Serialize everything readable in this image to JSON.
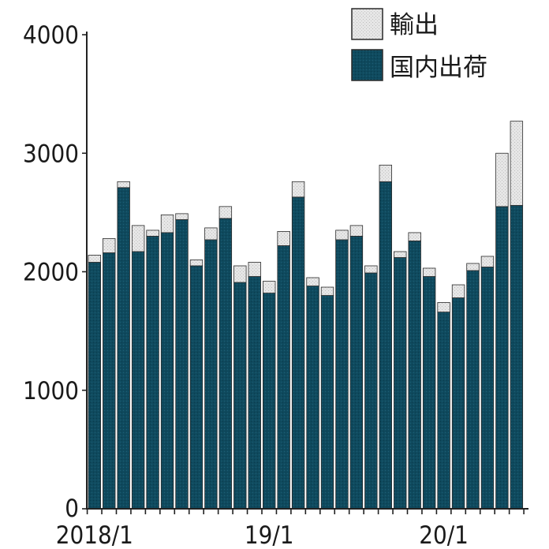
{
  "chart_data": {
    "type": "bar",
    "stacked": true,
    "title": "",
    "xlabel": "",
    "ylabel": "",
    "ylim": [
      0,
      4000
    ],
    "yticks": [
      0,
      1000,
      2000,
      3000,
      4000
    ],
    "grid": false,
    "legend_position": "top-right",
    "x_tick_labels": [
      {
        "index": 0,
        "label": "2018/1"
      },
      {
        "index": 12,
        "label": "19/1"
      },
      {
        "index": 24,
        "label": "20/1"
      }
    ],
    "series": [
      {
        "name": "国内出荷",
        "color": "#0f4a5e",
        "values": [
          2080,
          2160,
          2710,
          2170,
          2300,
          2330,
          2440,
          2050,
          2270,
          2450,
          1910,
          1960,
          1820,
          2220,
          2630,
          1880,
          1800,
          2270,
          2300,
          1990,
          2760,
          2120,
          2260,
          1960,
          1660,
          1780,
          2010,
          2040,
          2550,
          2560
        ]
      },
      {
        "name": "輸出",
        "color": "#dcdcdc",
        "values": [
          60,
          120,
          50,
          220,
          50,
          150,
          50,
          50,
          100,
          100,
          140,
          120,
          100,
          120,
          130,
          70,
          70,
          80,
          90,
          60,
          140,
          50,
          70,
          70,
          80,
          110,
          60,
          90,
          450,
          710
        ]
      }
    ]
  }
}
